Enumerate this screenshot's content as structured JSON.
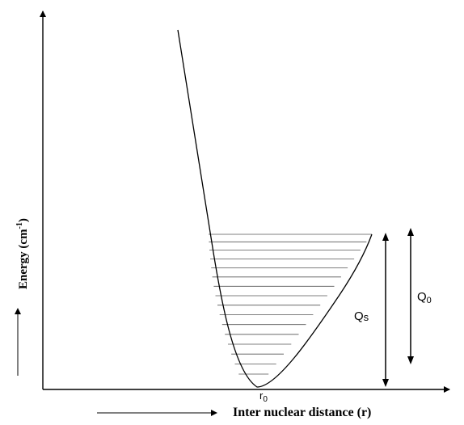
{
  "labels": {
    "y_axis_title": "Energy (cm",
    "y_axis_superscript": "-1",
    "y_axis_close": ")",
    "x_axis_title": "Inter nuclear distance (r)",
    "r0_main": "r",
    "r0_sub": "0",
    "qs_main": "Q",
    "qs_sub": "s",
    "q0_main": "Q",
    "q0_sub": "0"
  },
  "chart_data": {
    "type": "potential-energy-curve",
    "x_axis": {
      "label": "Inter nuclear distance (r)",
      "ticks": [
        "r0"
      ]
    },
    "y_axis": {
      "label": "Energy (cm-1)"
    },
    "vibrational_levels_count": 16,
    "annotations": [
      "Qs",
      "Q0"
    ]
  },
  "colors": {
    "ink": "#000000",
    "level_line": "#555555",
    "background": "#ffffff"
  }
}
